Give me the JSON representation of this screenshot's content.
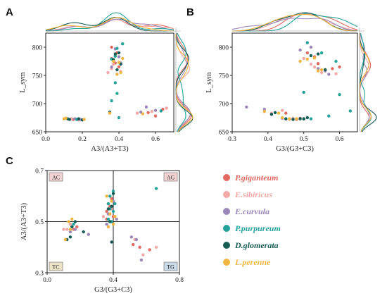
{
  "colors": {
    "P.giganteum": "#e26a63",
    "E.sibiricus": "#f2a8a6",
    "E.curvula": "#9b88b9",
    "P.purpureum": "#24a39a",
    "D.glomerata": "#155c55",
    "L.perenne": "#f2b640"
  },
  "legend": {
    "placement": "right",
    "items": [
      "P.giganteum",
      "E.sibiricus",
      "E.curvula",
      "P.purpureum",
      "D.glomerata",
      "L.perenne"
    ]
  },
  "chart_data": [
    {
      "panel": "A",
      "type": "scatter",
      "xlabel": "A3/(A3+T3)",
      "ylabel": "L_sym",
      "xlim": [
        0,
        0.7
      ],
      "ylim": [
        650,
        825
      ],
      "xticks": [
        "0.0",
        "0.2",
        "0.4",
        "0.6"
      ],
      "xtick_values": [
        0.0,
        0.2,
        0.4,
        0.6
      ],
      "yticks": [
        "650",
        "700",
        "750",
        "800"
      ],
      "ytick_values": [
        650,
        700,
        750,
        800
      ],
      "marginal_density": "top and right",
      "series": [
        {
          "name": "P.giganteum",
          "points": [
            [
              0.15,
              672
            ],
            [
              0.17,
              672
            ],
            [
              0.36,
              780
            ],
            [
              0.38,
              772
            ],
            [
              0.4,
              765
            ],
            [
              0.56,
              684
            ],
            [
              0.6,
              678
            ],
            [
              0.64,
              690
            ],
            [
              0.36,
              800
            ],
            [
              0.39,
              790
            ]
          ]
        },
        {
          "name": "E.sibiricus",
          "points": [
            [
              0.14,
              673
            ],
            [
              0.18,
              671
            ],
            [
              0.34,
              755
            ],
            [
              0.36,
              762
            ],
            [
              0.38,
              785
            ],
            [
              0.5,
              683
            ],
            [
              0.58,
              686
            ],
            [
              0.66,
              692
            ],
            [
              0.41,
              757
            ],
            [
              0.37,
              770
            ]
          ]
        },
        {
          "name": "E.curvula",
          "points": [
            [
              0.16,
              673
            ],
            [
              0.19,
              672
            ],
            [
              0.36,
              765
            ],
            [
              0.39,
              752
            ],
            [
              0.41,
              772
            ],
            [
              0.52,
              685
            ],
            [
              0.55,
              694
            ],
            [
              0.6,
              688
            ],
            [
              0.38,
              797
            ],
            [
              0.4,
              783
            ]
          ]
        },
        {
          "name": "P.purpureum",
          "points": [
            [
              0.17,
              672
            ],
            [
              0.39,
              798
            ],
            [
              0.42,
              806
            ],
            [
              0.38,
              737
            ],
            [
              0.39,
              718
            ],
            [
              0.36,
              705
            ],
            [
              0.63,
              687
            ],
            [
              0.4,
              675
            ],
            [
              0.36,
              779
            ],
            [
              0.38,
              784
            ]
          ]
        },
        {
          "name": "D.glomerata",
          "points": [
            [
              0.12,
              673
            ],
            [
              0.13,
              672
            ],
            [
              0.18,
              673
            ],
            [
              0.2,
              671
            ],
            [
              0.37,
              778
            ],
            [
              0.4,
              790
            ],
            [
              0.39,
              760
            ],
            [
              0.35,
              685
            ],
            [
              0.38,
              788
            ],
            [
              0.41,
              770
            ]
          ]
        },
        {
          "name": "L.perenne",
          "points": [
            [
              0.1,
              673
            ],
            [
              0.11,
              674
            ],
            [
              0.35,
              683
            ],
            [
              0.41,
              755
            ],
            [
              0.4,
              773
            ],
            [
              0.37,
              775
            ],
            [
              0.53,
              682
            ],
            [
              0.21,
              672
            ],
            [
              0.39,
              752
            ],
            [
              0.42,
              780
            ]
          ]
        }
      ]
    },
    {
      "panel": "B",
      "type": "scatter",
      "xlabel": "G3/(G3+C3)",
      "ylabel": "L_sym",
      "xlim": [
        0.3,
        0.65
      ],
      "ylim": [
        650,
        825
      ],
      "xticks": [
        "0.3",
        "0.4",
        "0.5",
        "0.6"
      ],
      "xtick_values": [
        0.3,
        0.4,
        0.5,
        0.6
      ],
      "yticks": [
        "650",
        "700",
        "750",
        "800"
      ],
      "ytick_values": [
        650,
        700,
        750,
        800
      ],
      "marginal_density": "top and right",
      "series": [
        {
          "name": "P.giganteum",
          "points": [
            [
              0.47,
              673
            ],
            [
              0.49,
              674
            ],
            [
              0.51,
              790
            ],
            [
              0.53,
              783
            ],
            [
              0.56,
              760
            ],
            [
              0.58,
              762
            ],
            [
              0.6,
              765
            ],
            [
              0.45,
              683
            ],
            [
              0.48,
              672
            ],
            [
              0.54,
              771
            ]
          ]
        },
        {
          "name": "E.sibiricus",
          "points": [
            [
              0.46,
              672
            ],
            [
              0.5,
              673
            ],
            [
              0.5,
              780
            ],
            [
              0.52,
              770
            ],
            [
              0.55,
              755
            ],
            [
              0.59,
              753
            ],
            [
              0.41,
              683
            ],
            [
              0.44,
              688
            ],
            [
              0.47,
              674
            ],
            [
              0.53,
              765
            ]
          ]
        },
        {
          "name": "E.curvula",
          "points": [
            [
              0.44,
              674
            ],
            [
              0.47,
              672
            ],
            [
              0.49,
              795
            ],
            [
              0.54,
              762
            ],
            [
              0.56,
              758
            ],
            [
              0.34,
              694
            ],
            [
              0.39,
              690
            ],
            [
              0.52,
              800
            ],
            [
              0.45,
              673
            ],
            [
              0.57,
              752
            ]
          ]
        },
        {
          "name": "P.purpureum",
          "points": [
            [
              0.5,
              720
            ],
            [
              0.51,
              808
            ],
            [
              0.57,
              678
            ],
            [
              0.6,
              716
            ],
            [
              0.63,
              687
            ],
            [
              0.52,
              673
            ],
            [
              0.59,
              775
            ],
            [
              0.55,
              790
            ],
            [
              0.5,
              673
            ],
            [
              0.48,
              673
            ]
          ]
        },
        {
          "name": "D.glomerata",
          "points": [
            [
              0.42,
              684
            ],
            [
              0.45,
              673
            ],
            [
              0.47,
              672
            ],
            [
              0.5,
              673
            ],
            [
              0.51,
              675
            ],
            [
              0.54,
              788
            ],
            [
              0.56,
              760
            ],
            [
              0.49,
              673
            ],
            [
              0.41,
              681
            ],
            [
              0.52,
              785
            ]
          ]
        },
        {
          "name": "L.perenne",
          "points": [
            [
              0.39,
              686
            ],
            [
              0.44,
              675
            ],
            [
              0.49,
              775
            ],
            [
              0.51,
              779
            ],
            [
              0.55,
              760
            ],
            [
              0.43,
              683
            ],
            [
              0.46,
              673
            ],
            [
              0.53,
              781
            ],
            [
              0.48,
              673
            ],
            [
              0.54,
              758
            ]
          ]
        }
      ]
    },
    {
      "panel": "C",
      "type": "scatter",
      "xlabel": "G3/(G3+C3)",
      "ylabel": "A3/(A3+T3)",
      "xlim": [
        0.0,
        0.8
      ],
      "ylim": [
        0.3,
        0.7
      ],
      "xticks": [
        "0.0",
        "0.4",
        "0.8"
      ],
      "xtick_values": [
        0.0,
        0.4,
        0.8
      ],
      "yticks": [
        "0.3",
        "0.5",
        "0.7"
      ],
      "ytick_values": [
        0.3,
        0.5,
        0.7
      ],
      "reference_lines": {
        "x": 0.4,
        "y": 0.5
      },
      "quadrants": {
        "top_left": "AC",
        "top_right": "AG",
        "bottom_left": "TC",
        "bottom_right": "TG"
      },
      "series": [
        {
          "name": "P.giganteum",
          "points": [
            [
              0.16,
              0.47
            ],
            [
              0.18,
              0.48
            ],
            [
              0.36,
              0.54
            ],
            [
              0.38,
              0.56
            ],
            [
              0.4,
              0.52
            ],
            [
              0.52,
              0.41
            ],
            [
              0.56,
              0.4
            ],
            [
              0.62,
              0.39
            ],
            [
              0.36,
              0.51
            ],
            [
              0.39,
              0.59
            ]
          ]
        },
        {
          "name": "E.sibiricus",
          "points": [
            [
              0.1,
              0.47
            ],
            [
              0.12,
              0.47
            ],
            [
              0.34,
              0.52
            ],
            [
              0.37,
              0.57
            ],
            [
              0.39,
              0.55
            ],
            [
              0.53,
              0.43
            ],
            [
              0.66,
              0.4
            ],
            [
              0.58,
              0.37
            ],
            [
              0.14,
              0.49
            ],
            [
              0.38,
              0.53
            ]
          ]
        },
        {
          "name": "E.curvula",
          "points": [
            [
              0.14,
              0.46
            ],
            [
              0.17,
              0.47
            ],
            [
              0.36,
              0.49
            ],
            [
              0.4,
              0.58
            ],
            [
              0.42,
              0.51
            ],
            [
              0.51,
              0.44
            ],
            [
              0.54,
              0.43
            ],
            [
              0.57,
              0.35
            ],
            [
              0.37,
              0.53
            ],
            [
              0.25,
              0.45
            ]
          ]
        },
        {
          "name": "P.purpureum",
          "points": [
            [
              0.16,
              0.49
            ],
            [
              0.38,
              0.6
            ],
            [
              0.4,
              0.62
            ],
            [
              0.37,
              0.51
            ],
            [
              0.38,
              0.55
            ],
            [
              0.41,
              0.57
            ],
            [
              0.66,
              0.63
            ],
            [
              0.4,
              0.54
            ],
            [
              0.39,
              0.5
            ],
            [
              0.37,
              0.57
            ]
          ]
        },
        {
          "name": "D.glomerata",
          "points": [
            [
              0.12,
              0.43
            ],
            [
              0.15,
              0.48
            ],
            [
              0.17,
              0.5
            ],
            [
              0.22,
              0.46
            ],
            [
              0.39,
              0.42
            ],
            [
              0.4,
              0.61
            ],
            [
              0.37,
              0.55
            ],
            [
              0.39,
              0.56
            ],
            [
              0.14,
              0.44
            ],
            [
              0.38,
              0.5
            ]
          ]
        },
        {
          "name": "L.perenne",
          "points": [
            [
              0.11,
              0.43
            ],
            [
              0.13,
              0.5
            ],
            [
              0.15,
              0.51
            ],
            [
              0.36,
              0.6
            ],
            [
              0.38,
              0.53
            ],
            [
              0.4,
              0.49
            ],
            [
              0.37,
              0.48
            ],
            [
              0.14,
              0.47
            ],
            [
              0.39,
              0.58
            ],
            [
              0.41,
              0.52
            ]
          ]
        }
      ]
    }
  ]
}
